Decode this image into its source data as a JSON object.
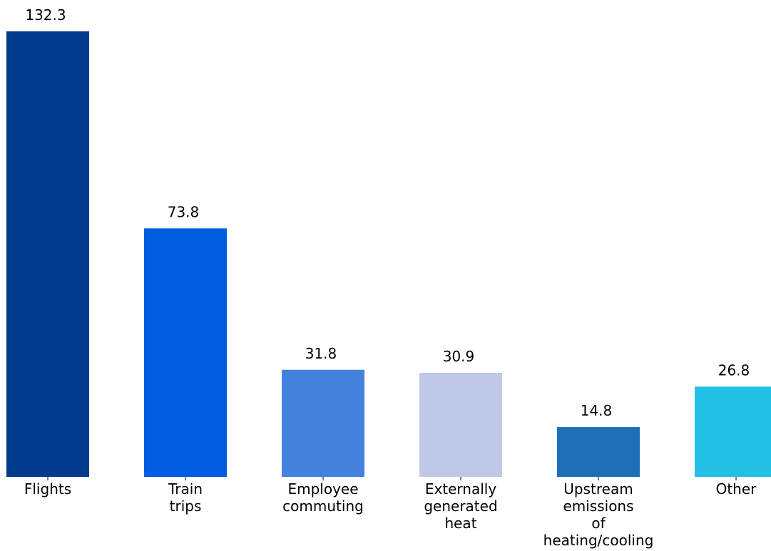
{
  "chart_data": {
    "type": "bar",
    "title": "",
    "xlabel": "",
    "ylabel": "",
    "ylim": [
      0,
      132.3
    ],
    "grid": false,
    "legend": "none",
    "categories": [
      [
        "Flights"
      ],
      [
        "Train",
        "trips"
      ],
      [
        "Employee",
        "commuting"
      ],
      [
        "Externally",
        "generated",
        "heat"
      ],
      [
        "Upstream",
        "emissions",
        "of",
        "heating/cooling"
      ],
      [
        "Other"
      ]
    ],
    "values": [
      132.3,
      73.8,
      31.8,
      30.9,
      14.8,
      26.8
    ],
    "value_labels": [
      "132.3",
      "73.8",
      "31.8",
      "30.9",
      "14.8",
      "26.8"
    ],
    "colors": [
      "#003a8c",
      "#005ddf",
      "#4282de",
      "#bfc9e6",
      "#1f6fb6",
      "#22c0e6"
    ]
  }
}
